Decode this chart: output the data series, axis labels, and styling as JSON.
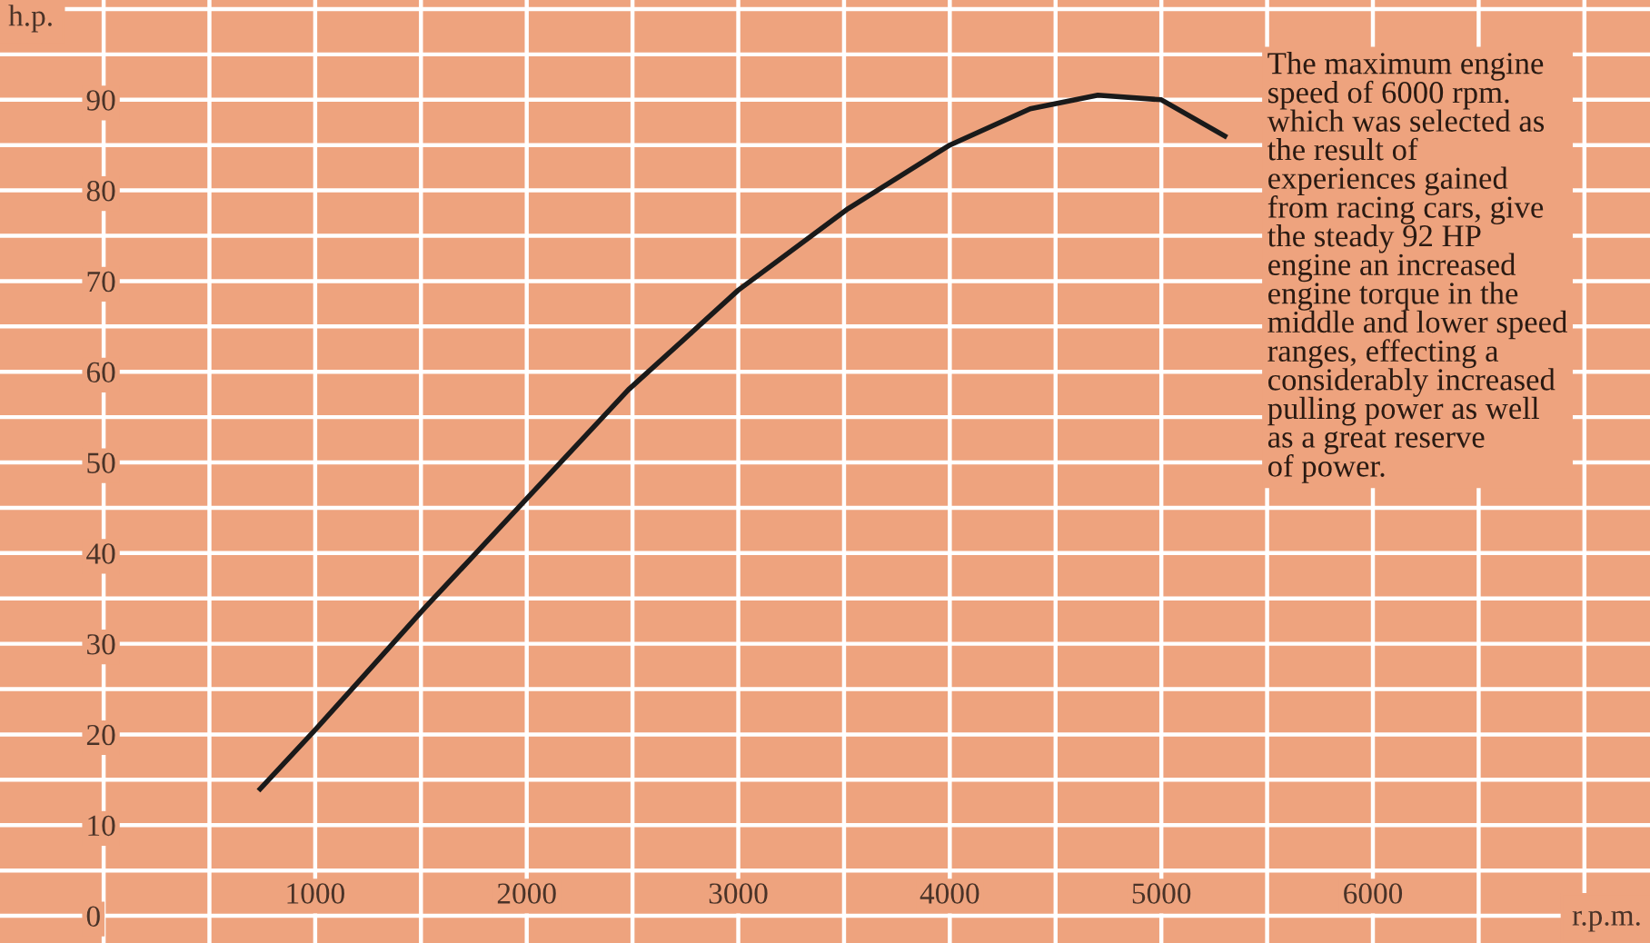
{
  "chart_data": {
    "type": "line",
    "ylabel": "h.p.",
    "xlabel": "r.p.m.",
    "x": [
      740,
      1000,
      1520,
      2000,
      2480,
      3000,
      3520,
      4000,
      4380,
      4700,
      5000,
      5300
    ],
    "series": [
      {
        "color": "#1a1a1a",
        "values": [
          14,
          20.5,
          34,
          46,
          58,
          69,
          78,
          85,
          89,
          90.5,
          90,
          86
        ]
      }
    ],
    "xlim": [
      -490,
      7310
    ],
    "ylim": [
      -3,
      101
    ],
    "xticks": [
      {
        "value": 0,
        "label": null
      },
      {
        "value": 500,
        "label": null
      },
      1000,
      {
        "value": 1500,
        "label": null
      },
      2000,
      {
        "value": 2500,
        "label": null
      },
      3000,
      {
        "value": 3500,
        "label": null
      },
      4000,
      {
        "value": 4500,
        "label": null
      },
      5000,
      {
        "value": 5500,
        "label": null
      },
      6000,
      {
        "value": 6500,
        "label": null
      },
      {
        "value": 7000,
        "label": null
      }
    ],
    "yticks": [
      0,
      {
        "value": 5,
        "label": null
      },
      10,
      {
        "value": 15,
        "label": null
      },
      20,
      {
        "value": 25,
        "label": null
      },
      30,
      {
        "value": 35,
        "label": null
      },
      40,
      {
        "value": 45,
        "label": null
      },
      50,
      {
        "value": 55,
        "label": null
      },
      60,
      {
        "value": 65,
        "label": null
      },
      70,
      {
        "value": 75,
        "label": null
      },
      80,
      {
        "value": 85,
        "label": null
      },
      90,
      {
        "value": 95,
        "label": null
      },
      {
        "value": 100,
        "label": null
      }
    ],
    "grid": true,
    "marker": "none",
    "line_style": "solid",
    "annotations": [
      "The maximum engine\nspeed of 6000 rpm.\nwhich was selected as\nthe result of\nexperiences gained\nfrom racing cars, give\nthe steady 92 HP\nengine an increased\nengine torque in the\nmiddle and lower speed\nranges, effecting a\nconsiderably increased\npulling power as well\nas a great reserve\nof power."
    ]
  }
}
